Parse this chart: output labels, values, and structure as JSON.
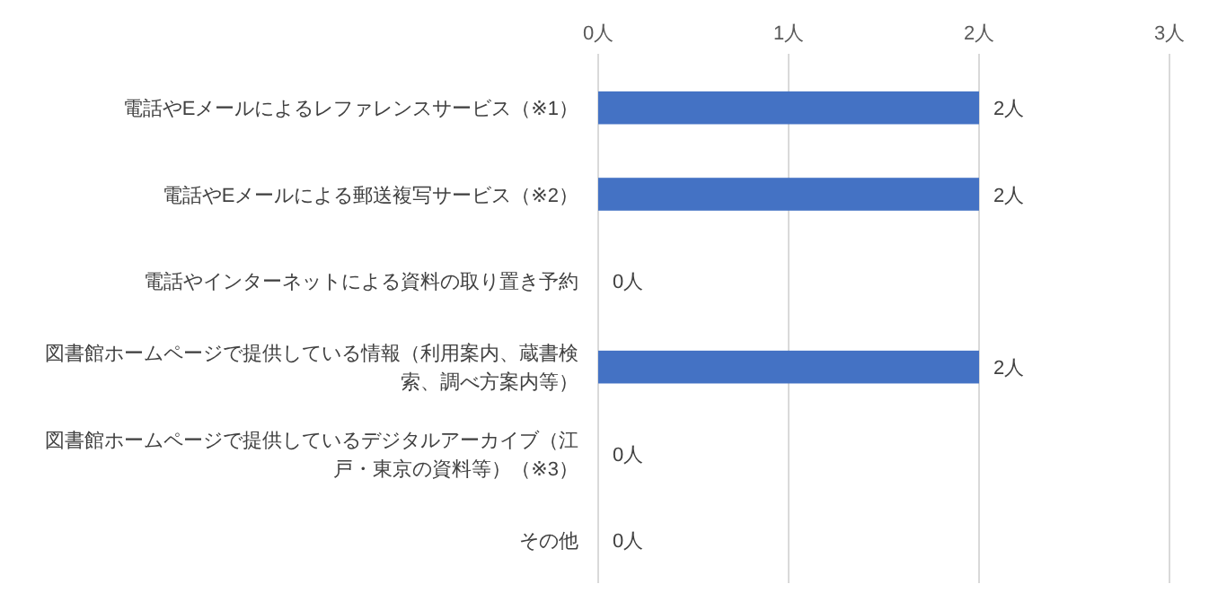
{
  "chart_data": {
    "type": "bar",
    "orientation": "horizontal",
    "categories": [
      "電話やEメールによるレファレンスサービス（※1）",
      "電話やEメールによる郵送複写サービス（※2）",
      "電話やインターネットによる資料の取り置き予約",
      "図書館ホームページで提供している情報（利用案内、蔵書検索、調べ方案内等）",
      "図書館ホームページで提供しているデジタルアーカイブ（江戸・東京の資料等）（※3）",
      "その他"
    ],
    "values": [
      2,
      2,
      0,
      2,
      0,
      0
    ],
    "value_labels": [
      "2人",
      "2人",
      "0人",
      "2人",
      "0人",
      "0人"
    ],
    "color": "#4472c4",
    "xlim": [
      0,
      3
    ],
    "xticks": [
      {
        "value": 0,
        "label": "0人"
      },
      {
        "value": 1,
        "label": "1人"
      },
      {
        "value": 2,
        "label": "2人"
      },
      {
        "value": 3,
        "label": "3人"
      }
    ],
    "grid": "x"
  }
}
